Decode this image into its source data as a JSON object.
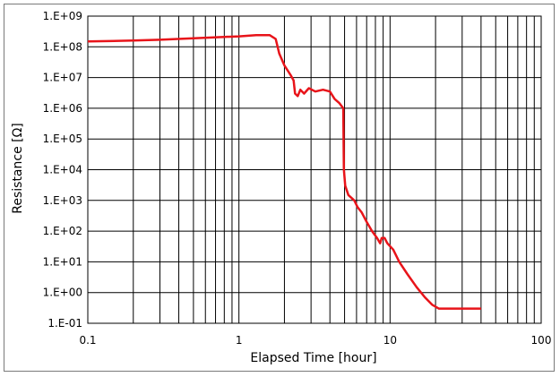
{
  "chart_data": {
    "type": "line",
    "xlabel": "Elapsed Time [hour]",
    "ylabel": "Resistance [Ω]",
    "x_scale": "log",
    "y_scale": "log",
    "xlim": [
      0.1,
      100
    ],
    "ylim": [
      0.1,
      1000000000
    ],
    "grid": true,
    "x_ticks": [
      "0.1",
      "1",
      "10",
      "100"
    ],
    "y_ticks": [
      "1.E-01",
      "1.E+00",
      "1.E+01",
      "1.E+02",
      "1.E+03",
      "1.E+04",
      "1.E+05",
      "1.E+06",
      "1.E+07",
      "1.E+08",
      "1.E+09"
    ],
    "series": [
      {
        "color": "#e8141a",
        "points": [
          [
            0.1,
            150000000
          ],
          [
            0.2,
            160000000
          ],
          [
            0.3,
            170000000
          ],
          [
            0.5,
            190000000
          ],
          [
            0.8,
            210000000
          ],
          [
            1.0,
            220000000
          ],
          [
            1.3,
            240000000
          ],
          [
            1.6,
            240000000
          ],
          [
            1.75,
            180000000
          ],
          [
            1.85,
            60000000
          ],
          [
            2.0,
            25000000
          ],
          [
            2.2,
            12000000
          ],
          [
            2.3,
            8000000
          ],
          [
            2.35,
            3000000
          ],
          [
            2.45,
            2500000
          ],
          [
            2.55,
            4000000
          ],
          [
            2.7,
            3000000
          ],
          [
            2.9,
            4500000
          ],
          [
            3.2,
            3500000
          ],
          [
            3.6,
            4000000
          ],
          [
            4.0,
            3500000
          ],
          [
            4.3,
            2000000
          ],
          [
            4.6,
            1500000
          ],
          [
            4.9,
            1000000
          ],
          [
            4.95,
            10000
          ],
          [
            5.05,
            3000
          ],
          [
            5.3,
            1500
          ],
          [
            5.8,
            1000
          ],
          [
            6.1,
            600
          ],
          [
            6.5,
            400
          ],
          [
            7.0,
            200
          ],
          [
            7.6,
            100
          ],
          [
            8.2,
            60
          ],
          [
            8.6,
            40
          ],
          [
            8.8,
            60
          ],
          [
            9.2,
            60
          ],
          [
            9.6,
            40
          ],
          [
            10.5,
            25
          ],
          [
            11.5,
            10
          ],
          [
            13.0,
            4
          ],
          [
            15.0,
            1.5
          ],
          [
            17.0,
            0.7
          ],
          [
            19.0,
            0.4
          ],
          [
            21.0,
            0.3
          ],
          [
            25.0,
            0.3
          ],
          [
            30.0,
            0.3
          ],
          [
            40.0,
            0.3
          ]
        ]
      }
    ]
  }
}
